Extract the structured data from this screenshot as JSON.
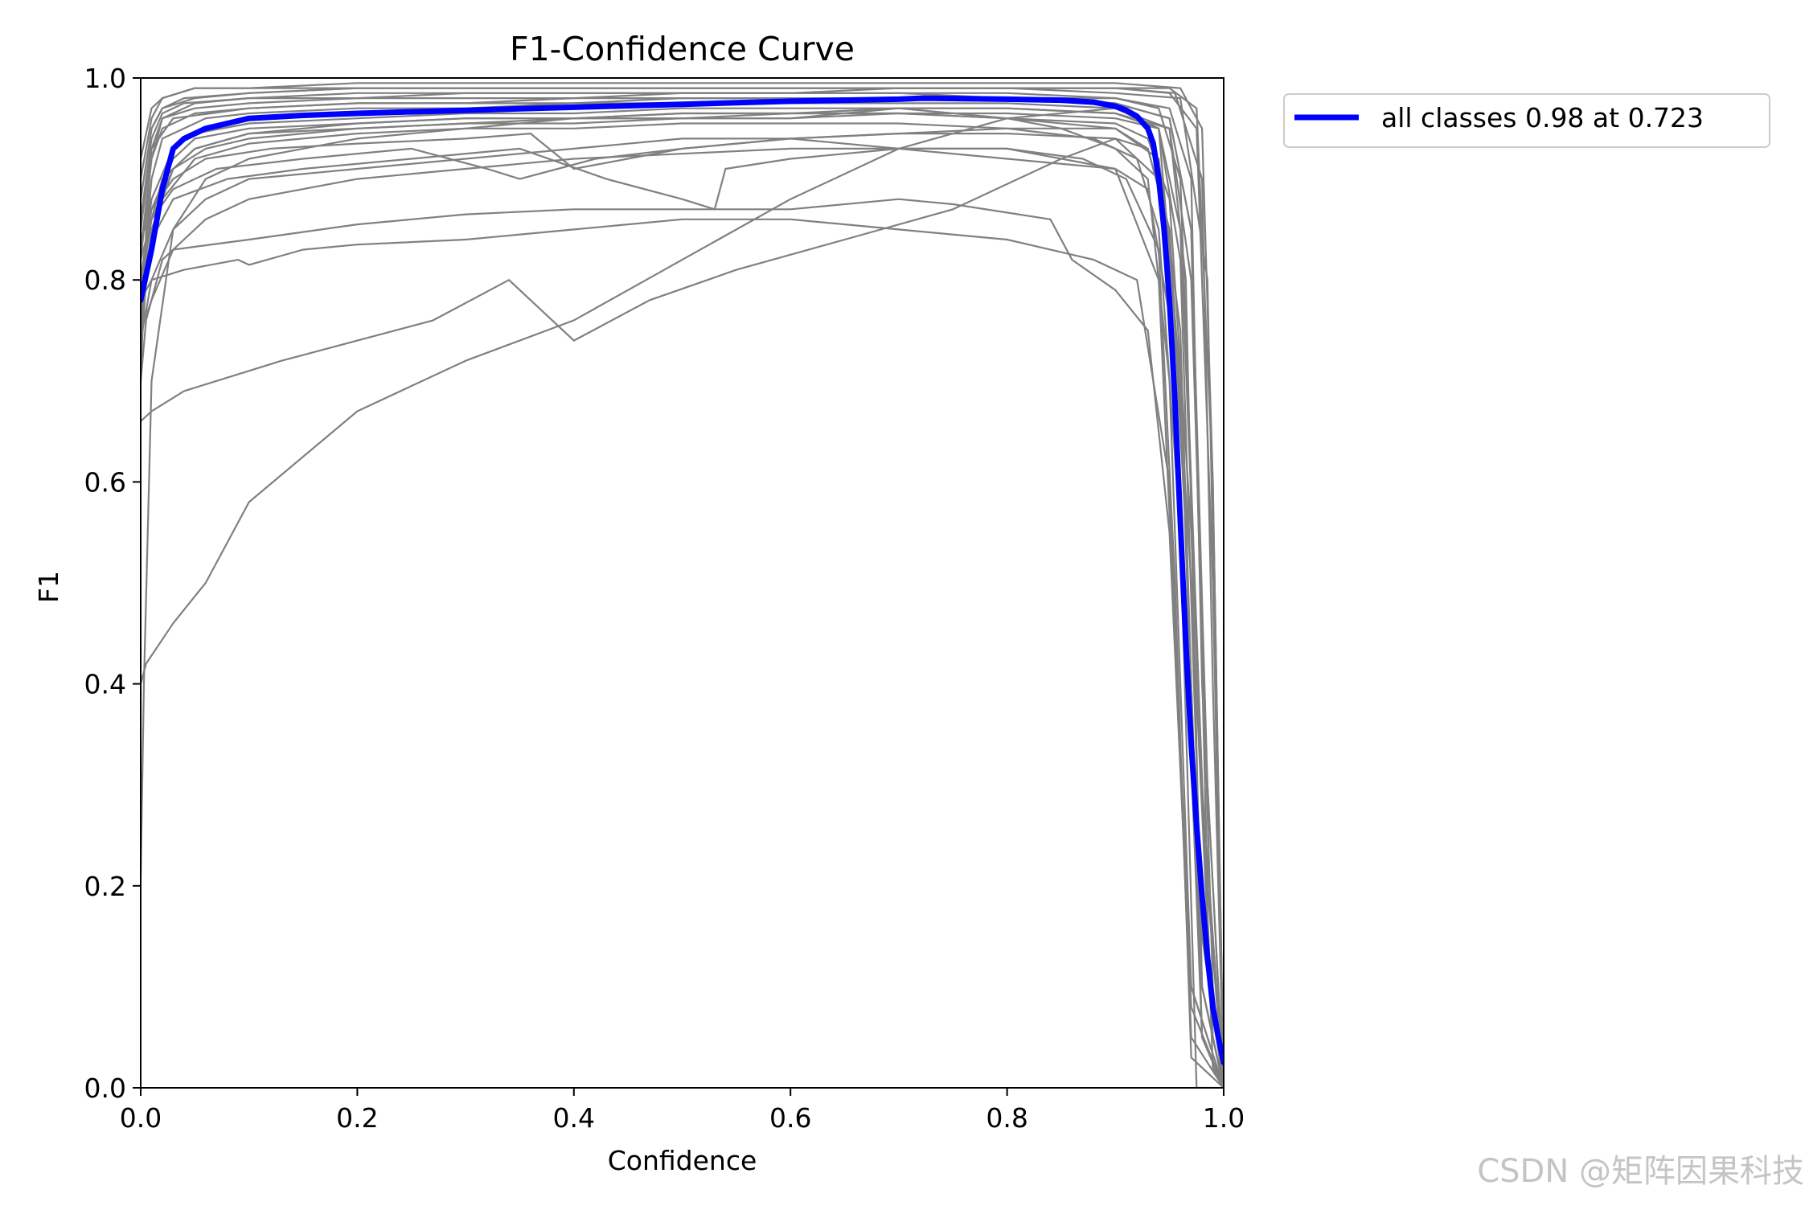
{
  "chart_data": {
    "type": "line",
    "title": "F1-Confidence Curve",
    "xlabel": "Confidence",
    "ylabel": "F1",
    "xlim": [
      0,
      1
    ],
    "ylim": [
      0,
      1
    ],
    "xticks": [
      "0.0",
      "0.2",
      "0.4",
      "0.6",
      "0.8",
      "1.0"
    ],
    "yticks": [
      "0.0",
      "0.2",
      "0.4",
      "0.6",
      "0.8",
      "1.0"
    ],
    "xtick_values": [
      0,
      0.2,
      0.4,
      0.6,
      0.8,
      1.0
    ],
    "ytick_values": [
      0,
      0.2,
      0.4,
      0.6,
      0.8,
      1.0
    ],
    "grid": false,
    "legend_position": "outside-top-right",
    "series": [
      {
        "name": "all classes 0.98 at 0.723",
        "color": "#0000ff",
        "x": [
          0.0,
          0.01,
          0.02,
          0.03,
          0.04,
          0.06,
          0.08,
          0.1,
          0.15,
          0.2,
          0.3,
          0.4,
          0.5,
          0.6,
          0.7,
          0.723,
          0.8,
          0.85,
          0.88,
          0.9,
          0.91,
          0.92,
          0.93,
          0.935,
          0.94,
          0.945,
          0.95,
          0.955,
          0.96,
          0.965,
          0.97,
          0.975,
          0.98,
          0.985,
          0.99,
          0.995,
          1.0
        ],
        "values": [
          0.78,
          0.83,
          0.89,
          0.93,
          0.94,
          0.95,
          0.955,
          0.96,
          0.963,
          0.965,
          0.968,
          0.971,
          0.974,
          0.977,
          0.979,
          0.98,
          0.979,
          0.978,
          0.976,
          0.972,
          0.968,
          0.962,
          0.95,
          0.935,
          0.9,
          0.85,
          0.78,
          0.68,
          0.56,
          0.44,
          0.34,
          0.26,
          0.19,
          0.13,
          0.08,
          0.05,
          0.025
        ]
      }
    ],
    "class_curves_color": "#808080",
    "class_curves": [
      {
        "x": [
          0.0,
          0.003,
          0.01,
          0.03,
          0.06,
          0.1,
          0.15,
          0.2,
          0.3,
          0.4,
          0.5,
          0.6,
          0.7,
          0.8,
          0.9,
          0.93,
          0.95,
          0.97,
          0.99,
          1.0
        ],
        "y": [
          0.21,
          0.4,
          0.7,
          0.85,
          0.9,
          0.92,
          0.93,
          0.94,
          0.95,
          0.96,
          0.96,
          0.96,
          0.97,
          0.96,
          0.95,
          0.93,
          0.85,
          0.5,
          0.05,
          0.0
        ]
      },
      {
        "x": [
          0.0,
          0.005,
          0.03,
          0.06,
          0.1,
          0.2,
          0.3,
          0.4,
          0.5,
          0.6,
          0.7,
          0.8,
          0.9,
          0.94,
          0.96,
          0.98,
          1.0
        ],
        "y": [
          0.4,
          0.42,
          0.46,
          0.5,
          0.58,
          0.67,
          0.72,
          0.76,
          0.82,
          0.88,
          0.93,
          0.96,
          0.97,
          0.95,
          0.7,
          0.1,
          0.0
        ]
      },
      {
        "x": [
          0.0,
          0.01,
          0.04,
          0.13,
          0.2,
          0.27,
          0.34,
          0.4,
          0.47,
          0.55,
          0.65,
          0.75,
          0.85,
          0.9,
          0.94,
          0.96,
          0.98,
          1.0
        ],
        "y": [
          0.66,
          0.67,
          0.69,
          0.72,
          0.74,
          0.76,
          0.8,
          0.74,
          0.78,
          0.81,
          0.84,
          0.87,
          0.92,
          0.94,
          0.9,
          0.6,
          0.05,
          0.0
        ]
      },
      {
        "x": [
          0.0,
          0.01,
          0.03,
          0.1,
          0.2,
          0.3,
          0.4,
          0.5,
          0.6,
          0.7,
          0.75,
          0.84,
          0.86,
          0.9,
          0.93,
          0.95,
          0.97,
          1.0
        ],
        "y": [
          0.75,
          0.78,
          0.83,
          0.84,
          0.855,
          0.865,
          0.87,
          0.87,
          0.87,
          0.88,
          0.875,
          0.86,
          0.82,
          0.79,
          0.75,
          0.55,
          0.08,
          0.0
        ]
      },
      {
        "x": [
          0.0,
          0.01,
          0.04,
          0.09,
          0.1,
          0.15,
          0.2,
          0.3,
          0.4,
          0.5,
          0.6,
          0.7,
          0.8,
          0.88,
          0.92,
          0.95,
          0.97,
          1.0
        ],
        "y": [
          0.78,
          0.8,
          0.81,
          0.82,
          0.815,
          0.83,
          0.835,
          0.84,
          0.85,
          0.86,
          0.86,
          0.85,
          0.84,
          0.82,
          0.8,
          0.6,
          0.05,
          0.0
        ]
      },
      {
        "x": [
          0.0,
          0.01,
          0.03,
          0.08,
          0.15,
          0.25,
          0.35,
          0.43,
          0.5,
          0.53,
          0.54,
          0.6,
          0.7,
          0.8,
          0.9,
          0.94,
          0.97,
          1.0
        ],
        "y": [
          0.8,
          0.84,
          0.88,
          0.9,
          0.91,
          0.92,
          0.93,
          0.9,
          0.88,
          0.87,
          0.91,
          0.92,
          0.93,
          0.93,
          0.91,
          0.8,
          0.1,
          0.0
        ]
      },
      {
        "x": [
          0.0,
          0.01,
          0.03,
          0.07,
          0.15,
          0.25,
          0.32,
          0.35,
          0.42,
          0.5,
          0.6,
          0.7,
          0.8,
          0.9,
          0.93,
          0.96,
          0.98,
          1.0
        ],
        "y": [
          0.82,
          0.86,
          0.89,
          0.91,
          0.92,
          0.93,
          0.91,
          0.9,
          0.92,
          0.93,
          0.94,
          0.93,
          0.92,
          0.91,
          0.89,
          0.7,
          0.05,
          0.0
        ]
      },
      {
        "x": [
          0.0,
          0.01,
          0.03,
          0.06,
          0.12,
          0.2,
          0.3,
          0.36,
          0.4,
          0.5,
          0.6,
          0.7,
          0.8,
          0.9,
          0.94,
          0.96,
          0.98,
          1.0
        ],
        "y": [
          0.84,
          0.87,
          0.9,
          0.92,
          0.93,
          0.935,
          0.94,
          0.945,
          0.91,
          0.93,
          0.94,
          0.945,
          0.95,
          0.95,
          0.92,
          0.75,
          0.05,
          0.0
        ]
      },
      {
        "x": [
          0.0,
          0.01,
          0.02,
          0.04,
          0.06,
          0.1,
          0.2,
          0.3,
          0.4,
          0.5,
          0.6,
          0.7,
          0.8,
          0.9,
          0.95,
          0.97,
          0.99,
          1.0
        ],
        "y": [
          0.78,
          0.9,
          0.94,
          0.95,
          0.96,
          0.965,
          0.97,
          0.97,
          0.975,
          0.975,
          0.975,
          0.975,
          0.975,
          0.97,
          0.95,
          0.8,
          0.1,
          0.0
        ]
      },
      {
        "x": [
          0.0,
          0.01,
          0.02,
          0.05,
          0.1,
          0.2,
          0.3,
          0.4,
          0.5,
          0.6,
          0.7,
          0.8,
          0.9,
          0.94,
          0.96,
          0.98,
          1.0
        ],
        "y": [
          0.82,
          0.92,
          0.96,
          0.975,
          0.98,
          0.98,
          0.985,
          0.985,
          0.985,
          0.985,
          0.985,
          0.985,
          0.98,
          0.97,
          0.9,
          0.3,
          0.0
        ]
      },
      {
        "x": [
          0.0,
          0.005,
          0.01,
          0.03,
          0.1,
          0.2,
          0.3,
          0.4,
          0.5,
          0.6,
          0.7,
          0.8,
          0.9,
          0.95,
          0.97,
          0.985,
          1.0
        ],
        "y": [
          0.7,
          0.85,
          0.93,
          0.96,
          0.97,
          0.975,
          0.975,
          0.98,
          0.98,
          0.98,
          0.98,
          0.98,
          0.975,
          0.96,
          0.85,
          0.3,
          0.0
        ]
      },
      {
        "x": [
          0.0,
          0.01,
          0.03,
          0.06,
          0.1,
          0.2,
          0.3,
          0.4,
          0.5,
          0.6,
          0.7,
          0.8,
          0.85,
          0.9,
          0.93,
          0.95,
          0.97,
          1.0
        ],
        "y": [
          0.76,
          0.85,
          0.91,
          0.93,
          0.94,
          0.95,
          0.955,
          0.96,
          0.96,
          0.965,
          0.965,
          0.96,
          0.95,
          0.93,
          0.9,
          0.7,
          0.1,
          0.0
        ]
      },
      {
        "x": [
          0.0,
          0.01,
          0.02,
          0.04,
          0.1,
          0.2,
          0.3,
          0.4,
          0.5,
          0.6,
          0.7,
          0.8,
          0.9,
          0.95,
          0.975,
          0.99,
          1.0
        ],
        "y": [
          0.88,
          0.95,
          0.97,
          0.98,
          0.985,
          0.99,
          0.99,
          0.99,
          0.99,
          0.99,
          0.99,
          0.99,
          0.99,
          0.985,
          0.95,
          0.5,
          0.0
        ]
      },
      {
        "x": [
          0.0,
          0.01,
          0.03,
          0.05,
          0.1,
          0.2,
          0.3,
          0.4,
          0.5,
          0.6,
          0.7,
          0.8,
          0.9,
          0.93,
          0.95,
          0.97,
          0.99,
          1.0
        ],
        "y": [
          0.8,
          0.87,
          0.92,
          0.94,
          0.95,
          0.955,
          0.96,
          0.96,
          0.965,
          0.965,
          0.965,
          0.96,
          0.955,
          0.94,
          0.88,
          0.55,
          0.05,
          0.0
        ]
      },
      {
        "x": [
          0.0,
          0.005,
          0.02,
          0.05,
          0.1,
          0.2,
          0.3,
          0.4,
          0.5,
          0.6,
          0.7,
          0.8,
          0.88,
          0.92,
          0.94,
          0.96,
          0.975,
          1.0
        ],
        "y": [
          0.72,
          0.8,
          0.88,
          0.92,
          0.935,
          0.945,
          0.95,
          0.95,
          0.955,
          0.955,
          0.955,
          0.95,
          0.94,
          0.92,
          0.85,
          0.55,
          0.0,
          0.0
        ]
      },
      {
        "x": [
          0.0,
          0.01,
          0.02,
          0.05,
          0.1,
          0.2,
          0.3,
          0.4,
          0.5,
          0.6,
          0.7,
          0.8,
          0.9,
          0.95,
          0.97,
          0.98,
          1.0
        ],
        "y": [
          0.85,
          0.93,
          0.96,
          0.97,
          0.975,
          0.98,
          0.98,
          0.98,
          0.985,
          0.985,
          0.985,
          0.98,
          0.98,
          0.97,
          0.9,
          0.4,
          0.0
        ]
      },
      {
        "x": [
          0.0,
          0.01,
          0.02,
          0.05,
          0.1,
          0.2,
          0.3,
          0.4,
          0.5,
          0.6,
          0.7,
          0.8,
          0.9,
          0.95,
          0.975,
          0.99,
          1.0
        ],
        "y": [
          0.9,
          0.96,
          0.98,
          0.99,
          0.99,
          0.99,
          0.99,
          0.99,
          0.99,
          0.99,
          0.99,
          0.99,
          0.99,
          0.99,
          0.97,
          0.6,
          0.0
        ]
      },
      {
        "x": [
          0.0,
          0.01,
          0.03,
          0.06,
          0.1,
          0.2,
          0.3,
          0.4,
          0.5,
          0.6,
          0.7,
          0.8,
          0.9,
          0.93,
          0.95,
          0.965,
          0.98,
          1.0
        ],
        "y": [
          0.74,
          0.8,
          0.85,
          0.88,
          0.9,
          0.91,
          0.92,
          0.93,
          0.94,
          0.94,
          0.945,
          0.945,
          0.94,
          0.93,
          0.85,
          0.55,
          0.1,
          0.0
        ]
      },
      {
        "x": [
          0.0,
          0.01,
          0.02,
          0.04,
          0.1,
          0.2,
          0.3,
          0.4,
          0.5,
          0.6,
          0.7,
          0.8,
          0.9,
          0.96,
          0.985,
          1.0
        ],
        "y": [
          0.86,
          0.94,
          0.965,
          0.975,
          0.98,
          0.985,
          0.985,
          0.985,
          0.985,
          0.985,
          0.99,
          0.99,
          0.985,
          0.98,
          0.8,
          0.0
        ]
      },
      {
        "x": [
          0.0,
          0.01,
          0.03,
          0.05,
          0.1,
          0.2,
          0.3,
          0.4,
          0.5,
          0.6,
          0.7,
          0.8,
          0.9,
          0.94,
          0.96,
          0.975,
          0.99,
          1.0
        ],
        "y": [
          0.79,
          0.86,
          0.91,
          0.93,
          0.945,
          0.95,
          0.955,
          0.955,
          0.96,
          0.96,
          0.965,
          0.965,
          0.96,
          0.95,
          0.85,
          0.45,
          0.02,
          0.0
        ]
      },
      {
        "x": [
          0.0,
          0.01,
          0.02,
          0.05,
          0.1,
          0.2,
          0.3,
          0.4,
          0.5,
          0.6,
          0.7,
          0.8,
          0.9,
          0.95,
          0.97,
          0.985,
          1.0
        ],
        "y": [
          0.83,
          0.92,
          0.95,
          0.965,
          0.97,
          0.975,
          0.975,
          0.975,
          0.98,
          0.98,
          0.98,
          0.98,
          0.975,
          0.96,
          0.85,
          0.2,
          0.0
        ]
      },
      {
        "x": [
          0.0,
          0.005,
          0.02,
          0.06,
          0.1,
          0.2,
          0.3,
          0.4,
          0.5,
          0.6,
          0.7,
          0.8,
          0.87,
          0.91,
          0.94,
          0.955,
          0.97,
          1.0
        ],
        "y": [
          0.7,
          0.76,
          0.82,
          0.86,
          0.88,
          0.9,
          0.91,
          0.92,
          0.925,
          0.93,
          0.93,
          0.93,
          0.92,
          0.9,
          0.83,
          0.5,
          0.03,
          0.0
        ]
      },
      {
        "x": [
          0.0,
          0.01,
          0.02,
          0.05,
          0.1,
          0.2,
          0.3,
          0.4,
          0.5,
          0.6,
          0.7,
          0.8,
          0.9,
          0.955,
          0.98,
          0.99,
          1.0
        ],
        "y": [
          0.88,
          0.95,
          0.97,
          0.98,
          0.985,
          0.99,
          0.99,
          0.99,
          0.99,
          0.99,
          0.99,
          0.99,
          0.99,
          0.985,
          0.9,
          0.4,
          0.0
        ]
      },
      {
        "x": [
          0.0,
          0.01,
          0.03,
          0.05,
          0.1,
          0.2,
          0.3,
          0.4,
          0.5,
          0.6,
          0.7,
          0.8,
          0.9,
          0.94,
          0.96,
          0.98,
          1.0
        ],
        "y": [
          0.8,
          0.88,
          0.93,
          0.945,
          0.955,
          0.96,
          0.965,
          0.965,
          0.97,
          0.97,
          0.97,
          0.97,
          0.965,
          0.95,
          0.82,
          0.15,
          0.0
        ]
      },
      {
        "x": [
          0.0,
          0.01,
          0.02,
          0.05,
          0.1,
          0.2,
          0.3,
          0.4,
          0.5,
          0.6,
          0.7,
          0.8,
          0.9,
          0.96,
          0.98,
          0.99,
          1.0
        ],
        "y": [
          0.92,
          0.97,
          0.98,
          0.99,
          0.99,
          0.995,
          0.995,
          0.995,
          0.995,
          0.995,
          0.995,
          0.995,
          0.995,
          0.99,
          0.95,
          0.6,
          0.0
        ]
      },
      {
        "x": [
          0.0,
          0.005,
          0.02,
          0.05,
          0.1,
          0.2,
          0.3,
          0.4,
          0.5,
          0.6,
          0.7,
          0.8,
          0.9,
          0.95,
          0.965,
          0.98,
          1.0
        ],
        "y": [
          0.75,
          0.84,
          0.9,
          0.93,
          0.945,
          0.955,
          0.96,
          0.96,
          0.965,
          0.965,
          0.97,
          0.97,
          0.965,
          0.95,
          0.8,
          0.1,
          0.0
        ]
      }
    ]
  },
  "watermark": "CSDN @矩阵因果科技"
}
